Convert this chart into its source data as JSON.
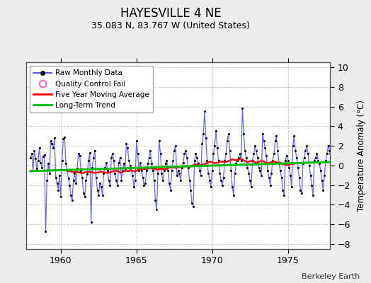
{
  "title": "HAYESVILLE 4 NE",
  "subtitle": "35.083 N, 83.767 W (United States)",
  "ylabel": "Temperature Anomaly (°C)",
  "attribution": "Berkeley Earth",
  "xlim": [
    1957.7,
    1977.8
  ],
  "ylim": [
    -8.5,
    10.5
  ],
  "yticks": [
    -8,
    -6,
    -4,
    -2,
    0,
    2,
    4,
    6,
    8,
    10
  ],
  "xticks": [
    1960,
    1965,
    1970,
    1975
  ],
  "fig_bg_color": "#ececec",
  "plot_bg_color": "#ffffff",
  "grid_color": "#cccccc",
  "line_color_raw": "#5555ff",
  "marker_color_raw": "#000000",
  "line_color_ma": "#ff0000",
  "line_color_trend": "#00bb00",
  "legend_entries": [
    "Raw Monthly Data",
    "Quality Control Fail",
    "Five Year Moving Average",
    "Long-Term Trend"
  ],
  "raw_data": [
    0.8,
    1.2,
    -0.5,
    1.5,
    0.7,
    -0.3,
    0.5,
    1.8,
    0.3,
    -0.2,
    0.9,
    1.1,
    -6.7,
    -1.5,
    0.2,
    -0.8,
    2.5,
    2.2,
    1.8,
    2.8,
    -1.2,
    -1.8,
    -2.5,
    -1.0,
    -3.2,
    0.5,
    2.7,
    2.9,
    0.2,
    -0.5,
    -1.3,
    -2.0,
    -3.0,
    -3.5,
    -1.5,
    -0.8,
    -1.8,
    -0.3,
    1.2,
    1.0,
    -0.5,
    -1.2,
    -2.8,
    -3.2,
    -1.5,
    -0.9,
    0.5,
    1.3,
    -5.8,
    -0.2,
    0.8,
    1.5,
    -1.2,
    -2.5,
    -3.0,
    -1.8,
    -2.2,
    -3.0,
    -0.8,
    -0.2,
    0.3,
    -0.5,
    -1.5,
    -2.0,
    0.8,
    1.2,
    0.5,
    -0.8,
    -1.5,
    -2.0,
    0.3,
    0.8,
    -1.5,
    -0.5,
    0.2,
    -0.3,
    2.2,
    1.8,
    0.5,
    0.0,
    -0.5,
    -1.0,
    -2.2,
    -1.5,
    2.5,
    1.2,
    -0.5,
    0.3,
    -0.5,
    -1.2,
    -2.0,
    -1.8,
    -0.5,
    0.2,
    0.8,
    1.5,
    0.2,
    -0.5,
    -1.5,
    -3.5,
    -4.5,
    -0.8,
    2.5,
    1.2,
    -0.8,
    -1.5,
    -0.5,
    0.2,
    0.5,
    -0.5,
    -1.8,
    -2.5,
    -0.5,
    0.5,
    1.5,
    2.0,
    -1.0,
    -0.5,
    -0.8,
    -1.5,
    -0.2,
    0.3,
    1.2,
    1.5,
    0.8,
    -0.2,
    -1.5,
    -2.5,
    -3.8,
    -4.2,
    0.5,
    1.2,
    0.8,
    0.2,
    -0.5,
    -1.0,
    2.2,
    3.2,
    5.5,
    2.8,
    0.5,
    -0.8,
    -1.5,
    -2.2,
    -0.5,
    1.2,
    2.0,
    3.5,
    1.8,
    0.5,
    -0.8,
    -1.5,
    -2.0,
    -1.2,
    0.5,
    1.2,
    2.5,
    3.2,
    1.5,
    -0.5,
    -2.2,
    -3.0,
    -0.8,
    0.2,
    0.5,
    0.8,
    1.2,
    0.5,
    5.8,
    3.2,
    1.5,
    0.8,
    -0.2,
    -0.8,
    -1.5,
    -2.2,
    0.5,
    1.2,
    2.0,
    1.5,
    0.8,
    -0.2,
    -0.5,
    -1.0,
    3.2,
    2.5,
    1.8,
    1.0,
    -0.5,
    -1.2,
    -2.0,
    -0.8,
    0.5,
    1.2,
    2.5,
    3.0,
    1.5,
    0.2,
    -0.5,
    -1.2,
    -2.5,
    -3.0,
    0.5,
    1.0,
    0.5,
    -0.2,
    -1.0,
    -2.2,
    2.0,
    3.0,
    1.5,
    0.8,
    -0.2,
    -1.2,
    -2.5,
    -2.8,
    0.2,
    0.8,
    1.5,
    2.0,
    1.2,
    0.0,
    -1.0,
    -2.0,
    -3.0,
    0.5,
    0.8,
    1.2,
    0.5,
    0.2,
    -0.5,
    -1.5,
    -2.5,
    -1.0,
    0.5,
    1.2,
    2.0,
    1.5,
    0.8,
    0.2
  ],
  "start_year": 1958,
  "start_month": 1
}
